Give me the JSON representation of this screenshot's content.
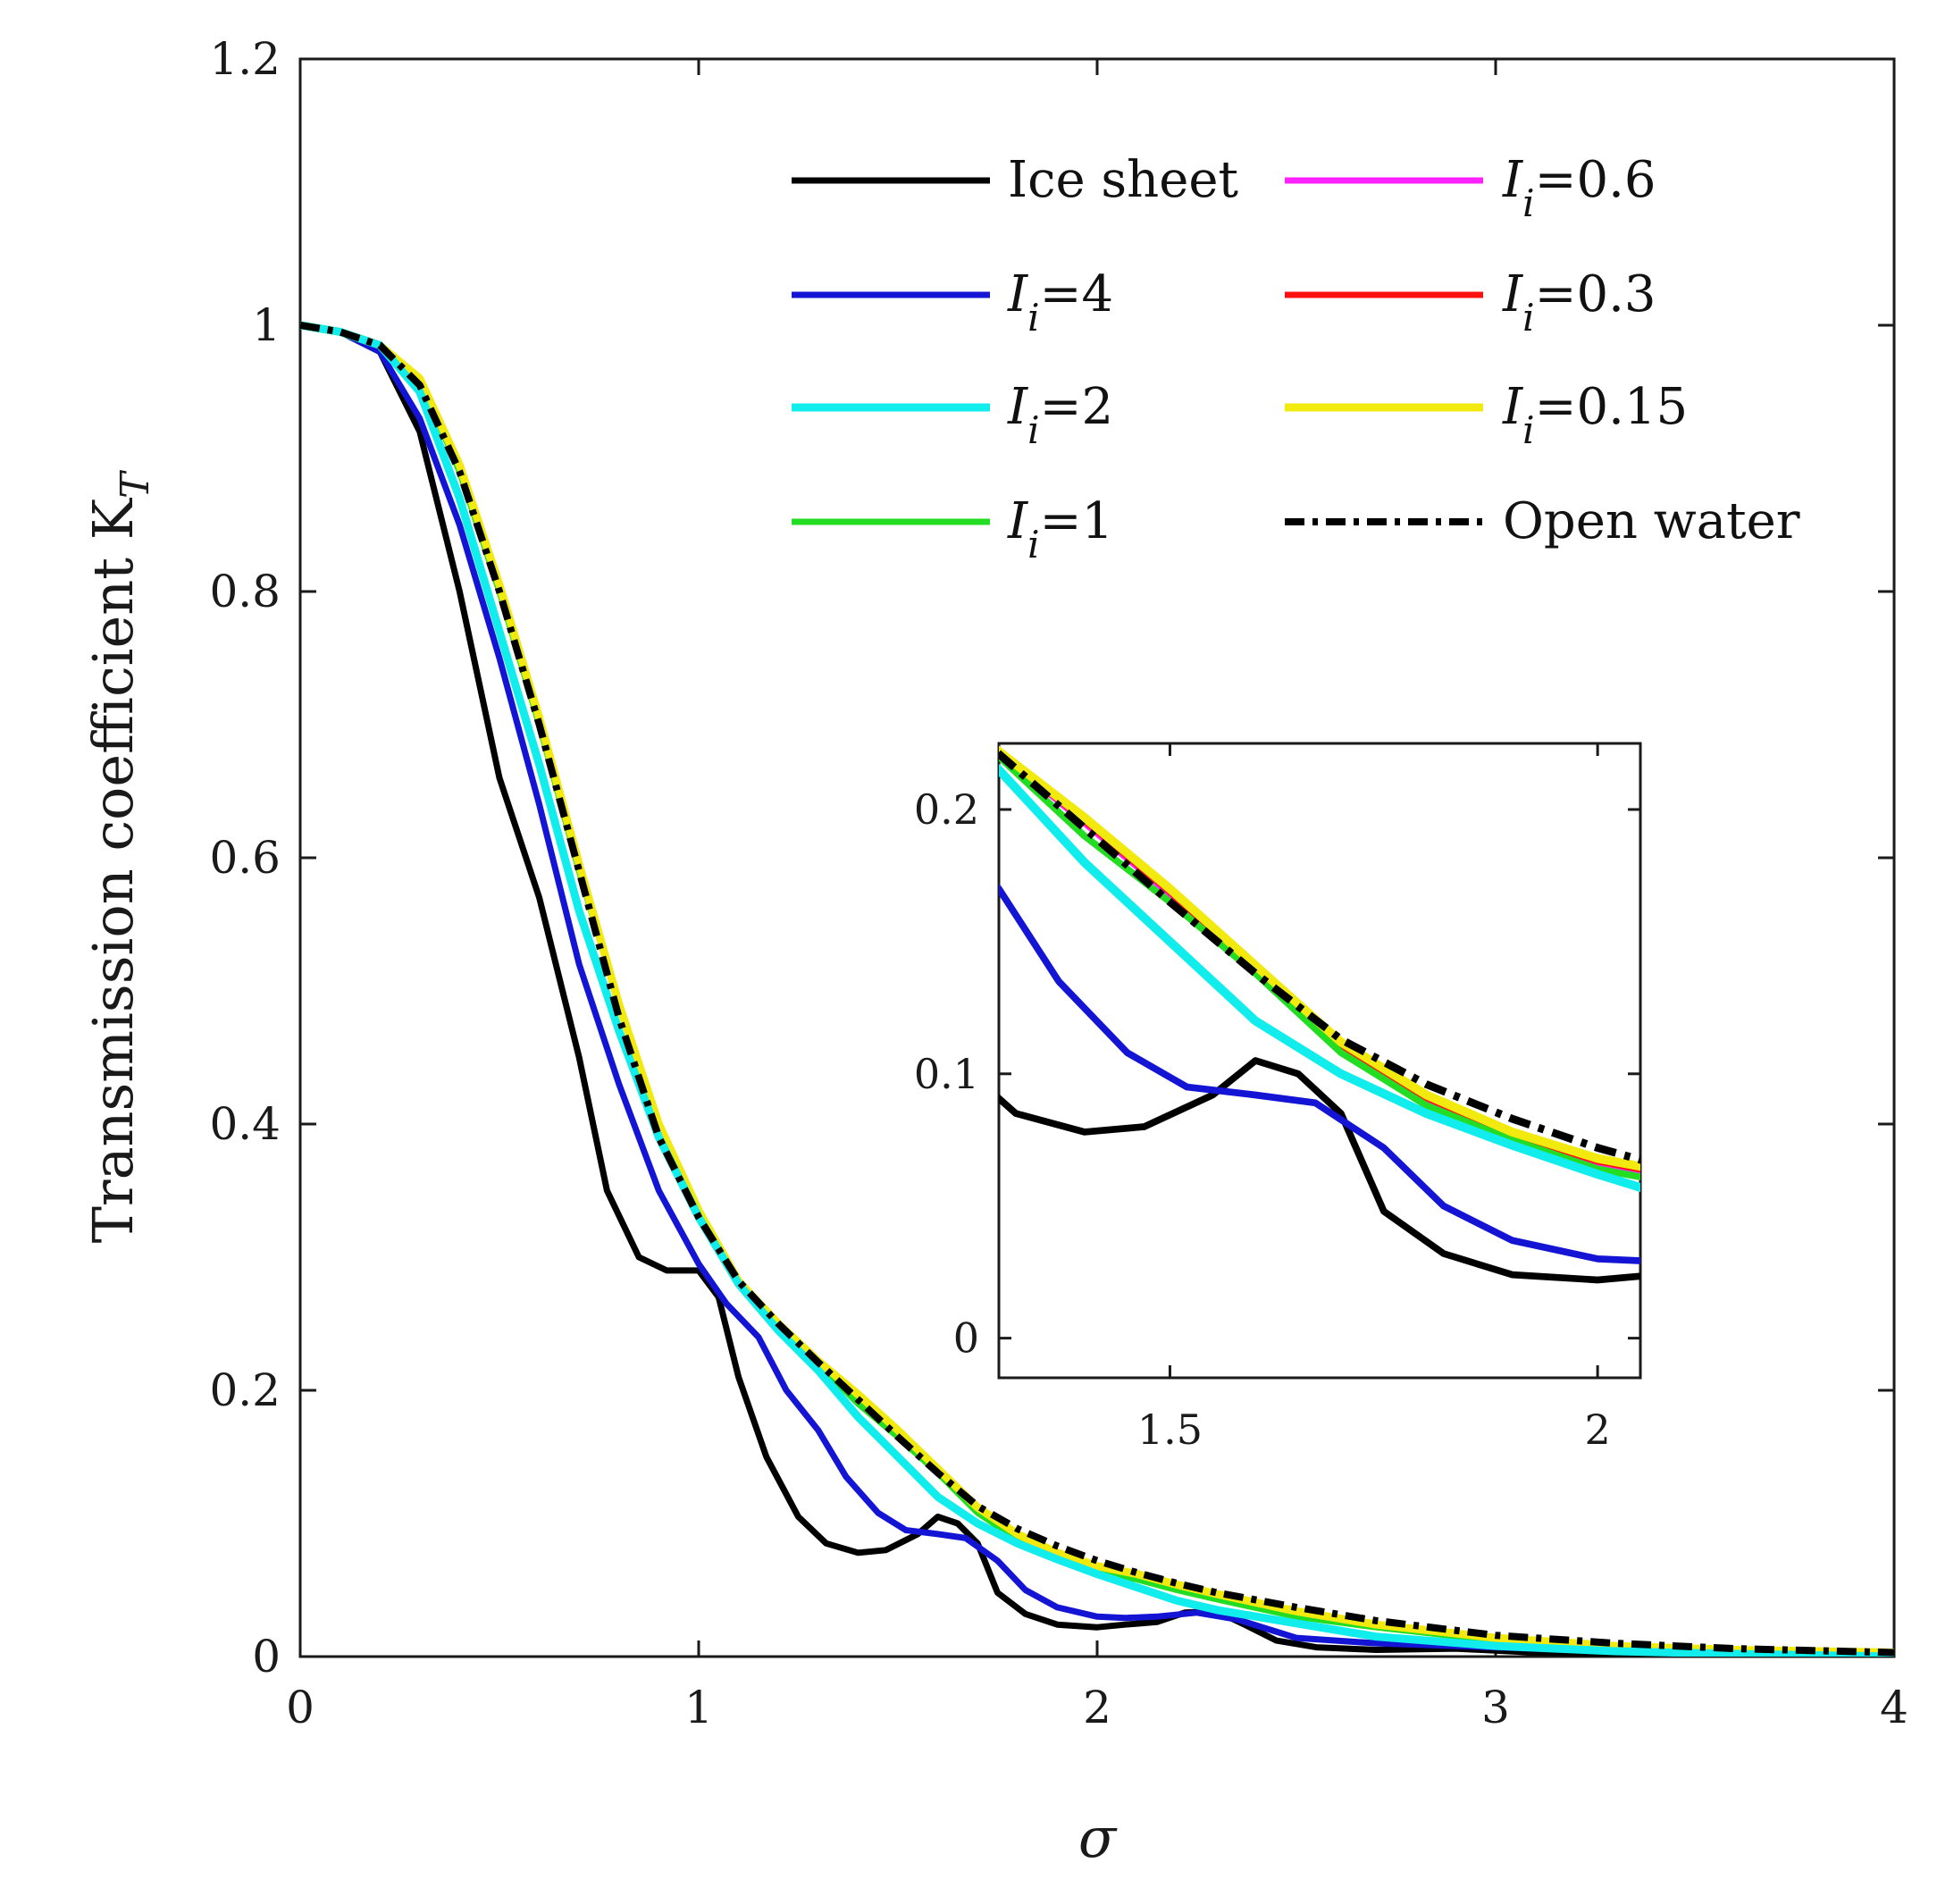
{
  "chart_data": [
    {
      "type": "line",
      "xlabel": "σ",
      "ylabel": "Transmission coefficient K",
      "ylabel_subscript": "T",
      "xlim": [
        0,
        4
      ],
      "ylim": [
        0,
        1.2
      ],
      "x_ticks": [
        "0",
        "1",
        "2",
        "3",
        "4"
      ],
      "y_ticks": [
        "0",
        "0.2",
        "0.4",
        "0.6",
        "0.8",
        "1",
        "1.2"
      ],
      "legend_position": "top-right",
      "grid": false,
      "legend": [
        {
          "key": "ice",
          "text": "Ice sheet",
          "sub": "",
          "suffix": ""
        },
        {
          "key": "i06",
          "text": "I",
          "sub": "i",
          "suffix": "=0.6"
        },
        {
          "key": "i4",
          "text": "I",
          "sub": "i",
          "suffix": "=4"
        },
        {
          "key": "i03",
          "text": "I",
          "sub": "i",
          "suffix": "=0.3"
        },
        {
          "key": "i2",
          "text": "I",
          "sub": "i",
          "suffix": "=2"
        },
        {
          "key": "i015",
          "text": "I",
          "sub": "i",
          "suffix": "=0.15"
        },
        {
          "key": "i1",
          "text": "I",
          "sub": "i",
          "suffix": "=1"
        },
        {
          "key": "open",
          "text": "Open water",
          "sub": "",
          "suffix": ""
        }
      ],
      "series": [
        {
          "key": "ice",
          "name": "Ice sheet",
          "color": "#000000",
          "dash": "solid",
          "x": [
            0,
            0.1,
            0.2,
            0.3,
            0.4,
            0.45,
            0.5,
            0.6,
            0.7,
            0.77,
            0.85,
            0.92,
            1.0,
            1.05,
            1.1,
            1.17,
            1.25,
            1.32,
            1.4,
            1.47,
            1.55,
            1.6,
            1.65,
            1.7,
            1.75,
            1.82,
            1.9,
            2.0,
            2.07,
            2.15,
            2.22,
            2.3,
            2.37,
            2.45,
            2.55,
            2.7,
            2.9,
            3.1,
            3.3,
            3.5,
            3.8,
            4.0
          ],
          "y": [
            1.0,
            0.995,
            0.98,
            0.92,
            0.8,
            0.73,
            0.66,
            0.57,
            0.45,
            0.35,
            0.3,
            0.29,
            0.29,
            0.27,
            0.21,
            0.15,
            0.105,
            0.085,
            0.078,
            0.08,
            0.092,
            0.105,
            0.1,
            0.085,
            0.048,
            0.032,
            0.024,
            0.022,
            0.024,
            0.026,
            0.033,
            0.034,
            0.024,
            0.012,
            0.007,
            0.005,
            0.006,
            0.003,
            0.002,
            0.001,
            0.001,
            0.001
          ]
        },
        {
          "key": "i4",
          "name": "Ii=4",
          "color": "#1414d4",
          "dash": "solid",
          "x": [
            0,
            0.1,
            0.2,
            0.3,
            0.4,
            0.5,
            0.6,
            0.7,
            0.8,
            0.9,
            1.0,
            1.07,
            1.15,
            1.22,
            1.3,
            1.37,
            1.45,
            1.52,
            1.6,
            1.67,
            1.75,
            1.82,
            1.9,
            2.0,
            2.07,
            2.15,
            2.25,
            2.35,
            2.5,
            2.7,
            3.0,
            3.5,
            4.0
          ],
          "y": [
            1.0,
            0.995,
            0.98,
            0.93,
            0.85,
            0.75,
            0.64,
            0.52,
            0.43,
            0.35,
            0.295,
            0.265,
            0.24,
            0.2,
            0.17,
            0.135,
            0.108,
            0.095,
            0.092,
            0.089,
            0.072,
            0.05,
            0.037,
            0.03,
            0.029,
            0.03,
            0.033,
            0.028,
            0.014,
            0.01,
            0.007,
            0.002,
            0.001
          ]
        },
        {
          "key": "i2",
          "name": "Ii=2",
          "color": "#11ecec",
          "dash": "solid",
          "x": [
            0,
            0.1,
            0.2,
            0.3,
            0.4,
            0.5,
            0.6,
            0.7,
            0.8,
            0.9,
            1.0,
            1.1,
            1.2,
            1.3,
            1.4,
            1.5,
            1.6,
            1.7,
            1.8,
            1.9,
            2.0,
            2.1,
            2.2,
            2.3,
            2.4,
            2.5,
            2.7,
            3.0,
            3.3,
            3.6,
            4.0
          ],
          "y": [
            1.0,
            0.995,
            0.985,
            0.95,
            0.87,
            0.77,
            0.67,
            0.56,
            0.47,
            0.39,
            0.33,
            0.28,
            0.245,
            0.215,
            0.18,
            0.15,
            0.12,
            0.1,
            0.085,
            0.073,
            0.062,
            0.052,
            0.042,
            0.035,
            0.03,
            0.025,
            0.015,
            0.008,
            0.004,
            0.002,
            0.0
          ]
        },
        {
          "key": "i1",
          "name": "Ii=1",
          "color": "#22dd22",
          "dash": "solid",
          "x": [
            0,
            0.1,
            0.2,
            0.3,
            0.4,
            0.5,
            0.6,
            0.7,
            0.8,
            0.9,
            1.0,
            1.1,
            1.2,
            1.3,
            1.4,
            1.5,
            1.6,
            1.7,
            1.8,
            1.9,
            2.0,
            2.1,
            2.2,
            2.3,
            2.5,
            2.7,
            3.0,
            3.3,
            3.6,
            4.0
          ],
          "y": [
            1.0,
            0.995,
            0.985,
            0.96,
            0.89,
            0.8,
            0.7,
            0.59,
            0.49,
            0.4,
            0.335,
            0.28,
            0.248,
            0.22,
            0.19,
            0.165,
            0.138,
            0.108,
            0.088,
            0.075,
            0.064,
            0.058,
            0.05,
            0.043,
            0.03,
            0.022,
            0.012,
            0.007,
            0.004,
            0.002
          ]
        },
        {
          "key": "i06",
          "name": "Ii=0.6",
          "color": "#ff22ff",
          "dash": "solid",
          "x": [
            0,
            0.1,
            0.2,
            0.3,
            0.4,
            0.5,
            0.6,
            0.7,
            0.8,
            0.9,
            1.0,
            1.1,
            1.2,
            1.3,
            1.4,
            1.5,
            1.6,
            1.7,
            1.8,
            1.9,
            2.0,
            2.1,
            2.2,
            2.3,
            2.5,
            2.7,
            3.0,
            3.3,
            3.6,
            4.0
          ],
          "y": [
            1.0,
            0.995,
            0.985,
            0.96,
            0.895,
            0.805,
            0.705,
            0.595,
            0.49,
            0.4,
            0.335,
            0.282,
            0.25,
            0.222,
            0.195,
            0.168,
            0.14,
            0.11,
            0.09,
            0.076,
            0.066,
            0.06,
            0.052,
            0.045,
            0.032,
            0.023,
            0.013,
            0.008,
            0.005,
            0.003
          ]
        },
        {
          "key": "i03",
          "name": "Ii=0.3",
          "color": "#ff1111",
          "dash": "solid",
          "x": [
            0,
            0.1,
            0.2,
            0.3,
            0.4,
            0.5,
            0.6,
            0.7,
            0.8,
            0.9,
            1.0,
            1.1,
            1.2,
            1.3,
            1.4,
            1.5,
            1.6,
            1.7,
            1.8,
            1.9,
            2.0,
            2.1,
            2.2,
            2.3,
            2.5,
            2.7,
            3.0,
            3.3,
            3.6,
            4.0
          ],
          "y": [
            1.0,
            0.995,
            0.985,
            0.96,
            0.895,
            0.805,
            0.705,
            0.595,
            0.49,
            0.4,
            0.335,
            0.282,
            0.25,
            0.222,
            0.196,
            0.169,
            0.14,
            0.111,
            0.091,
            0.077,
            0.067,
            0.061,
            0.053,
            0.046,
            0.033,
            0.023,
            0.014,
            0.008,
            0.005,
            0.003
          ]
        },
        {
          "key": "i015",
          "name": "Ii=0.15",
          "color": "#f2ea0f",
          "dash": "solid",
          "x": [
            0,
            0.1,
            0.2,
            0.3,
            0.4,
            0.5,
            0.6,
            0.7,
            0.8,
            0.9,
            1.0,
            1.1,
            1.2,
            1.3,
            1.4,
            1.5,
            1.6,
            1.7,
            1.8,
            1.9,
            2.0,
            2.1,
            2.2,
            2.3,
            2.5,
            2.7,
            3.0,
            3.3,
            3.6,
            4.0
          ],
          "y": [
            1.0,
            0.995,
            0.985,
            0.96,
            0.895,
            0.805,
            0.705,
            0.595,
            0.49,
            0.4,
            0.335,
            0.282,
            0.25,
            0.222,
            0.197,
            0.17,
            0.141,
            0.112,
            0.092,
            0.078,
            0.068,
            0.062,
            0.054,
            0.047,
            0.034,
            0.024,
            0.014,
            0.008,
            0.005,
            0.003
          ]
        },
        {
          "key": "open",
          "name": "Open water",
          "color": "#000000",
          "dash": "dashdot",
          "x": [
            0,
            0.1,
            0.2,
            0.3,
            0.4,
            0.5,
            0.6,
            0.7,
            0.8,
            0.9,
            1.0,
            1.1,
            1.2,
            1.3,
            1.4,
            1.5,
            1.6,
            1.7,
            1.8,
            1.9,
            2.0,
            2.1,
            2.2,
            2.3,
            2.5,
            2.7,
            3.0,
            3.3,
            3.6,
            4.0
          ],
          "y": [
            1.0,
            0.995,
            0.985,
            0.955,
            0.89,
            0.8,
            0.7,
            0.59,
            0.48,
            0.39,
            0.33,
            0.282,
            0.25,
            0.221,
            0.193,
            0.165,
            0.138,
            0.113,
            0.096,
            0.083,
            0.072,
            0.063,
            0.055,
            0.048,
            0.037,
            0.027,
            0.016,
            0.01,
            0.006,
            0.003
          ]
        }
      ]
    },
    {
      "type": "line",
      "name": "inset",
      "xlim": [
        1.3,
        2.05
      ],
      "ylim": [
        -0.015,
        0.225
      ],
      "x_ticks": [
        "1.5",
        "2"
      ],
      "y_ticks": [
        "0",
        "0.1",
        "0.2"
      ],
      "note": "zoomed view of the same series for σ between 1.3 and 2.05"
    }
  ]
}
